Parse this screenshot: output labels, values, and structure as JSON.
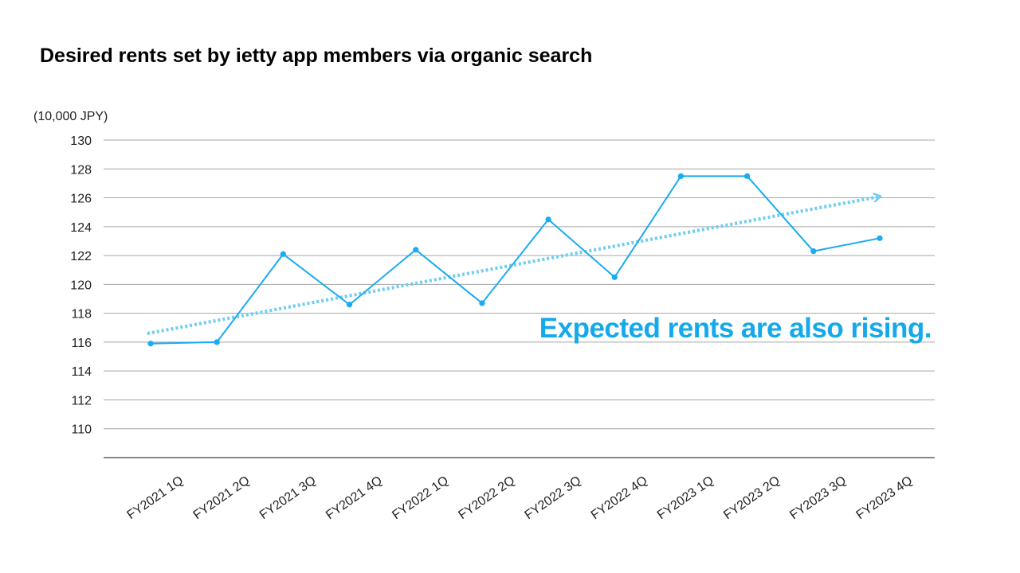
{
  "title": "Desired rents set by ietty app members via organic search",
  "chart_data": {
    "type": "line",
    "title": "Desired rents set by ietty app members via organic search",
    "ylabel": "(10,000 JPY)",
    "xlabel": "",
    "ylim": [
      108,
      130
    ],
    "yticks": [
      110,
      112,
      114,
      116,
      118,
      120,
      122,
      124,
      126,
      128,
      130
    ],
    "grid": true,
    "categories": [
      "FY2021 1Q",
      "FY2021 2Q",
      "FY2021 3Q",
      "FY2021 4Q",
      "FY2022 1Q",
      "FY2022 2Q",
      "FY2022 3Q",
      "FY2022 4Q",
      "FY2023 1Q",
      "FY2023 2Q",
      "FY2023 3Q",
      "FY2023 4Q"
    ],
    "series": [
      {
        "values": [
          115.9,
          116.0,
          122.1,
          118.6,
          122.4,
          118.7,
          124.5,
          120.5,
          127.5,
          127.5,
          122.3,
          123.2
        ]
      }
    ],
    "trend": {
      "style": "dotted-arrow",
      "start_value": 116.6,
      "end_value": 126.1
    },
    "annotation": "Expected rents are also rising.",
    "colors": {
      "line": "#1aabf0",
      "trend": "#6fcdf3",
      "annotation": "#13a9ea",
      "grid": "#a6a6a6",
      "axis": "#404040"
    }
  }
}
